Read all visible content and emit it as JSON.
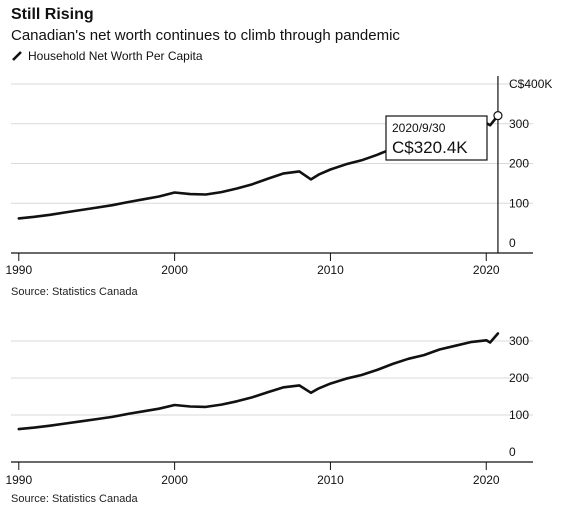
{
  "header": {
    "title": "Still Rising",
    "subtitle": "Canadian's net worth continues to climb through pandemic"
  },
  "colors": {
    "line": "#111111",
    "grid": "#d9d9d9",
    "axis": "#111111"
  },
  "chart_data": [
    {
      "type": "line",
      "series": [
        {
          "name": "Household Net Worth Per Capita"
        }
      ],
      "x": [
        1990,
        1991,
        1992,
        1993,
        1994,
        1995,
        1996,
        1997,
        1998,
        1999,
        2000,
        2001,
        2002,
        2003,
        2004,
        2005,
        2006,
        2007,
        2008,
        2008.75,
        2009.25,
        2010,
        2011,
        2012,
        2013,
        2014,
        2015,
        2016,
        2017,
        2018,
        2019,
        2020,
        2020.25,
        2020.75
      ],
      "values": [
        62,
        66,
        71,
        77,
        83,
        89,
        95,
        103,
        110,
        117,
        127,
        123,
        122,
        128,
        137,
        148,
        162,
        175,
        180,
        160,
        172,
        185,
        198,
        208,
        222,
        238,
        252,
        262,
        277,
        287,
        297,
        302,
        296,
        320.4
      ],
      "y_ticks": [
        {
          "value": 0,
          "label": "0"
        },
        {
          "value": 100,
          "label": "100"
        },
        {
          "value": 200,
          "label": "200"
        },
        {
          "value": 300,
          "label": "300"
        },
        {
          "value": 400,
          "label": "C$400K"
        }
      ],
      "x_ticks": [
        {
          "value": 1990,
          "label": "1990"
        },
        {
          "value": 2000,
          "label": "2000"
        },
        {
          "value": 2010,
          "label": "2010"
        },
        {
          "value": 2020,
          "label": "2020"
        }
      ],
      "xlim": [
        1989.5,
        2023
      ],
      "ylim": [
        0,
        400
      ],
      "grid": true,
      "tooltip": {
        "x": 2020.75,
        "y": 320.4,
        "date": "2020/9/30",
        "value": "C$320.4K"
      },
      "source": "Source: Statistics Canada"
    },
    {
      "type": "line",
      "x": [
        1990,
        1991,
        1992,
        1993,
        1994,
        1995,
        1996,
        1997,
        1998,
        1999,
        2000,
        2001,
        2002,
        2003,
        2004,
        2005,
        2006,
        2007,
        2008,
        2008.75,
        2009.25,
        2010,
        2011,
        2012,
        2013,
        2014,
        2015,
        2016,
        2017,
        2018,
        2019,
        2020,
        2020.25,
        2020.75
      ],
      "values": [
        62,
        66,
        71,
        77,
        83,
        89,
        95,
        103,
        110,
        117,
        127,
        123,
        122,
        128,
        137,
        148,
        162,
        175,
        180,
        160,
        172,
        185,
        198,
        208,
        222,
        238,
        252,
        262,
        277,
        287,
        297,
        302,
        296,
        320.4
      ],
      "y_ticks": [
        {
          "value": 0,
          "label": "0"
        },
        {
          "value": 100,
          "label": "100"
        },
        {
          "value": 200,
          "label": "200"
        },
        {
          "value": 300,
          "label": "300"
        }
      ],
      "x_ticks": [
        {
          "value": 1990,
          "label": "1990"
        },
        {
          "value": 2000,
          "label": "2000"
        },
        {
          "value": 2010,
          "label": "2010"
        },
        {
          "value": 2020,
          "label": "2020"
        }
      ],
      "xlim": [
        1989.5,
        2023
      ],
      "ylim": [
        0,
        400
      ],
      "grid": true,
      "source": "Source: Statistics Canada"
    }
  ]
}
